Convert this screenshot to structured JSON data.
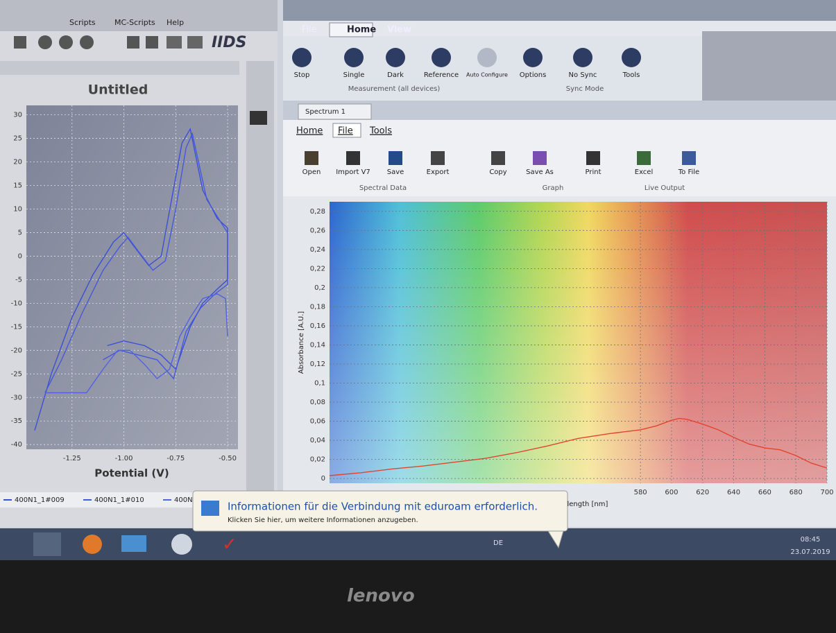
{
  "left_window": {
    "menu": [
      "Scripts",
      "MC-Scripts",
      "Help"
    ],
    "logo": "IIDS"
  },
  "ribbon": {
    "tabs": [
      "File",
      "Home",
      "View"
    ],
    "buttons": [
      "Stop",
      "Single",
      "Dark",
      "Reference",
      "Auto Configure",
      "Options",
      "No Sync",
      "Tools"
    ],
    "groups": [
      "Measurement (all devices)",
      "Sync Mode"
    ]
  },
  "document_tab": "Spectrum 1",
  "inner_ribbon": {
    "tabs": [
      "Home",
      "File",
      "Tools"
    ],
    "buttons": [
      "Open",
      "Import V7",
      "Save",
      "Export",
      "Copy",
      "Save As",
      "Print",
      "Excel",
      "To File"
    ],
    "groups": [
      "Spectral Data",
      "Graph",
      "Live Output"
    ]
  },
  "notification": {
    "title": "Informationen für die Verbindung mit eduroam erforderlich.",
    "body": "Klicken Sie hier, um weitere Informationen anzugeben."
  },
  "taskbar": {
    "language": "DE",
    "time": "08:45",
    "date": "23.07.2019"
  },
  "brand": "lenovo",
  "chart_data": [
    {
      "type": "line",
      "title": "Untitled",
      "x_label": "Potential (V)",
      "xlim": [
        -1.47,
        -0.45
      ],
      "ylim": [
        -41,
        32
      ],
      "xticks": [
        -1.25,
        {
          "value": -1,
          "label": "-1.00"
        },
        -0.75,
        {
          "value": -0.5,
          "label": "-0.50"
        }
      ],
      "yticks": [
        30,
        25,
        20,
        15,
        10,
        5,
        0,
        -5,
        -10,
        -15,
        -20,
        -25,
        -30,
        -35,
        -40
      ],
      "grid": true,
      "series": [
        {
          "name": "400N1_1#009",
          "color": "#3b4fd6",
          "x": [
            -1.43,
            -1.35,
            -1.25,
            -1.15,
            -1.05,
            -1.0,
            -0.95,
            -0.88,
            -0.82,
            -0.77,
            -0.72,
            -0.68,
            -0.62,
            -0.55,
            -0.5,
            -0.5,
            -0.55,
            -0.62,
            -0.68,
            -0.75,
            -0.82,
            -0.9,
            -1.0,
            -1.08
          ],
          "values": [
            -37,
            -25,
            -13,
            -4,
            3,
            5,
            2,
            -2,
            0,
            12,
            24,
            27,
            14,
            8,
            6,
            -5,
            -7,
            -10,
            -15,
            -24,
            -21,
            -19,
            -18,
            -19
          ]
        },
        {
          "name": "400N1_1#010",
          "color": "#4658dc",
          "x": [
            -1.38,
            -1.3,
            -1.2,
            -1.1,
            -1.02,
            -0.98,
            -0.93,
            -0.86,
            -0.8,
            -0.75,
            -0.7,
            -0.67,
            -0.6,
            -0.53,
            -0.5,
            -0.5,
            -0.56,
            -0.63,
            -0.7,
            -0.76,
            -0.84,
            -0.93,
            -1.02,
            -1.1
          ],
          "values": [
            -29,
            -22,
            -12,
            -3,
            2,
            4,
            1,
            -3,
            -1,
            10,
            23,
            26,
            12,
            7,
            5,
            -6,
            -8,
            -11,
            -16,
            -26,
            -22,
            -21,
            -20,
            -22
          ]
        },
        {
          "name": "400N1_1#012",
          "color": "#5262e0",
          "x": [
            -1.38,
            -1.25,
            -1.18,
            -1.1,
            -1.03,
            -0.97,
            -0.9,
            -0.84,
            -0.78,
            -0.73,
            -0.68,
            -0.62,
            -0.55,
            -0.51,
            -0.5
          ],
          "values": [
            -29,
            -29,
            -29,
            -24,
            -20,
            -20,
            -23,
            -26,
            -24,
            -17,
            -13,
            -9,
            -8,
            -9,
            -17
          ]
        }
      ]
    },
    {
      "type": "line",
      "x_label": "Wavelength [nm]",
      "y_label": "Absorbance [A.U.]",
      "xlim": [
        380,
        700
      ],
      "ylim": [
        -0.005,
        0.29
      ],
      "xticks": [
        580,
        600,
        620,
        640,
        660,
        680,
        700
      ],
      "yticks": [
        0,
        {
          "value": 0.02,
          "label": "0,02"
        },
        {
          "value": 0.04,
          "label": "0,04"
        },
        {
          "value": 0.06,
          "label": "0,06"
        },
        {
          "value": 0.08,
          "label": "0,08"
        },
        {
          "value": 0.1,
          "label": "0,1"
        },
        {
          "value": 0.12,
          "label": "0,12"
        },
        {
          "value": 0.14,
          "label": "0,14"
        },
        {
          "value": 0.16,
          "label": "0,16"
        },
        {
          "value": 0.18,
          "label": "0,18"
        },
        {
          "value": 0.2,
          "label": "0,2"
        },
        {
          "value": 0.22,
          "label": "0,22"
        },
        {
          "value": 0.24,
          "label": "0,24"
        },
        {
          "value": 0.26,
          "label": "0,26"
        },
        {
          "value": 0.28,
          "label": "0,28"
        }
      ],
      "grid": true,
      "color": "#e0452e",
      "x": [
        380,
        400,
        420,
        440,
        460,
        480,
        500,
        520,
        540,
        560,
        570,
        580,
        590,
        600,
        605,
        610,
        620,
        630,
        640,
        650,
        660,
        670,
        680,
        690,
        700
      ],
      "values": [
        0.003,
        0.006,
        0.01,
        0.013,
        0.017,
        0.021,
        0.027,
        0.034,
        0.042,
        0.047,
        0.049,
        0.051,
        0.055,
        0.061,
        0.063,
        0.062,
        0.057,
        0.051,
        0.043,
        0.036,
        0.032,
        0.03,
        0.024,
        0.016,
        0.011
      ]
    }
  ]
}
